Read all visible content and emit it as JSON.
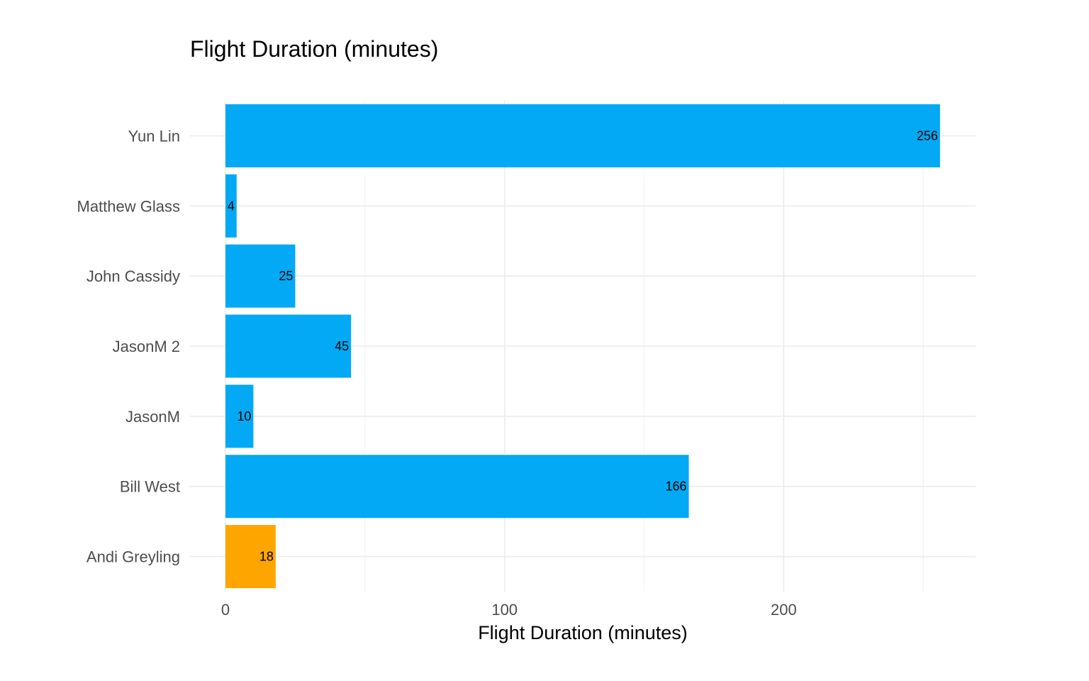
{
  "chart_data": {
    "type": "bar",
    "orientation": "horizontal",
    "title": "Flight Duration (minutes)",
    "xlabel": "Flight Duration (minutes)",
    "ylabel": "",
    "xlim": [
      0,
      269
    ],
    "x_ticks": [
      0,
      100,
      200
    ],
    "x_minor_ticks": [
      50,
      150,
      250
    ],
    "grid": true,
    "legend": "none",
    "categories": [
      "Yun Lin",
      "Matthew  Glass",
      "John Cassidy",
      "JasonM 2",
      "JasonM",
      "Bill West",
      "Andi Greyling"
    ],
    "values": [
      256,
      4,
      25,
      45,
      10,
      166,
      18
    ],
    "colors": [
      "#03A9F4",
      "#03A9F4",
      "#03A9F4",
      "#03A9F4",
      "#03A9F4",
      "#03A9F4",
      "#FFA500"
    ]
  }
}
